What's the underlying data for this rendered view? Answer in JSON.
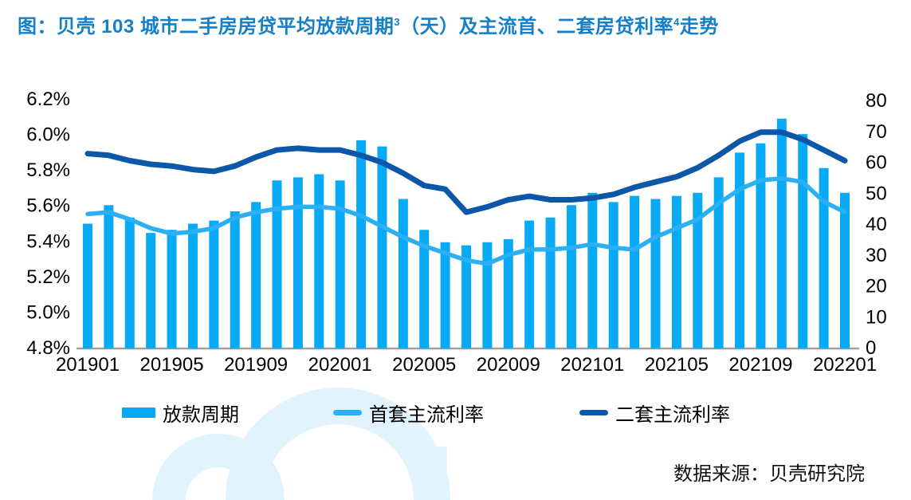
{
  "title": {
    "part1": "图：贝壳 103 城市二手房房贷平均放款周期",
    "sup1": "3",
    "part2": "（天）及主流首、二套房贷利率",
    "sup2": "4",
    "part3": "走势"
  },
  "source": "数据来源：贝壳研究院",
  "legend": [
    {
      "label": "放款周期",
      "type": "bar",
      "color": "#08a9f5"
    },
    {
      "label": "首套主流利率",
      "type": "line",
      "color": "#2bb0f5"
    },
    {
      "label": "二套主流利率",
      "type": "line",
      "color": "#0d57a8"
    }
  ],
  "colors": {
    "title_text": "#1580c8",
    "bar": "#08a9f5",
    "first_rate_line": "#2bb0f5",
    "second_rate_line": "#0d57a8",
    "axis_line": "#a0a0a0",
    "axis_text": "#000000",
    "watermark": "#d8effb"
  },
  "chart_data": {
    "type": "bar",
    "note": "combo chart: monthly bars (loan disbursement period, days, right axis) + two lines (mortgage rates %, left axis)",
    "categories": [
      "201901",
      "201902",
      "201903",
      "201904",
      "201905",
      "201906",
      "201907",
      "201908",
      "201909",
      "201910",
      "201911",
      "201912",
      "202001",
      "202002",
      "202003",
      "202004",
      "202005",
      "202006",
      "202007",
      "202008",
      "202009",
      "202010",
      "202011",
      "202012",
      "202101",
      "202102",
      "202103",
      "202104",
      "202105",
      "202106",
      "202107",
      "202108",
      "202109",
      "202110",
      "202111",
      "202112",
      "202201"
    ],
    "series": [
      {
        "name": "放款周期",
        "type": "bar",
        "axis": "right",
        "color": "#08a9f5",
        "values": [
          40,
          46,
          42,
          37,
          38,
          40,
          41,
          44,
          47,
          54,
          55,
          56,
          54,
          67,
          65,
          48,
          38,
          34,
          33,
          34,
          35,
          41,
          42,
          46,
          50,
          47,
          49,
          48,
          49,
          50,
          55,
          63,
          66,
          74,
          69,
          58,
          50
        ]
      },
      {
        "name": "首套主流利率",
        "type": "line",
        "axis": "left",
        "color": "#2bb0f5",
        "values": [
          5.55,
          5.56,
          5.52,
          5.47,
          5.44,
          5.45,
          5.47,
          5.53,
          5.56,
          5.58,
          5.59,
          5.59,
          5.58,
          5.54,
          5.48,
          5.42,
          5.37,
          5.33,
          5.29,
          5.27,
          5.32,
          5.35,
          5.35,
          5.36,
          5.38,
          5.36,
          5.35,
          5.42,
          5.47,
          5.52,
          5.61,
          5.69,
          5.74,
          5.75,
          5.73,
          5.62,
          5.56
        ]
      },
      {
        "name": "二套主流利率",
        "type": "line",
        "axis": "left",
        "color": "#0d57a8",
        "values": [
          5.89,
          5.88,
          5.85,
          5.83,
          5.82,
          5.8,
          5.79,
          5.82,
          5.87,
          5.91,
          5.92,
          5.91,
          5.91,
          5.88,
          5.84,
          5.78,
          5.71,
          5.69,
          5.56,
          5.59,
          5.63,
          5.65,
          5.63,
          5.63,
          5.64,
          5.66,
          5.7,
          5.73,
          5.76,
          5.81,
          5.88,
          5.96,
          6.01,
          6.01,
          5.97,
          5.91,
          5.85
        ]
      }
    ],
    "left_axis": {
      "min": 4.8,
      "max": 6.2,
      "unit": "%",
      "ticks": [
        {
          "label": "6.2%",
          "value": 6.2
        },
        {
          "label": "6.0%",
          "value": 6.0
        },
        {
          "label": "5.8%",
          "value": 5.8
        },
        {
          "label": "5.6%",
          "value": 5.6
        },
        {
          "label": "5.4%",
          "value": 5.4
        },
        {
          "label": "5.2%",
          "value": 5.2
        },
        {
          "label": "5.0%",
          "value": 5.0
        },
        {
          "label": "4.8%",
          "value": 4.8
        }
      ]
    },
    "right_axis": {
      "min": 0,
      "max": 80,
      "ticks": [
        {
          "label": "80",
          "value": 80
        },
        {
          "label": "70",
          "value": 70
        },
        {
          "label": "60",
          "value": 60
        },
        {
          "label": "50",
          "value": 50
        },
        {
          "label": "40",
          "value": 40
        },
        {
          "label": "30",
          "value": 30
        },
        {
          "label": "20",
          "value": 20
        },
        {
          "label": "10",
          "value": 10
        },
        {
          "label": "0",
          "value": 0
        }
      ]
    },
    "x_axis": {
      "tick_labels": [
        "201901",
        "201905",
        "201909",
        "202001",
        "202005",
        "202009",
        "202101",
        "202105",
        "202109",
        "202201"
      ]
    },
    "grid": false,
    "legend_position": "bottom"
  }
}
